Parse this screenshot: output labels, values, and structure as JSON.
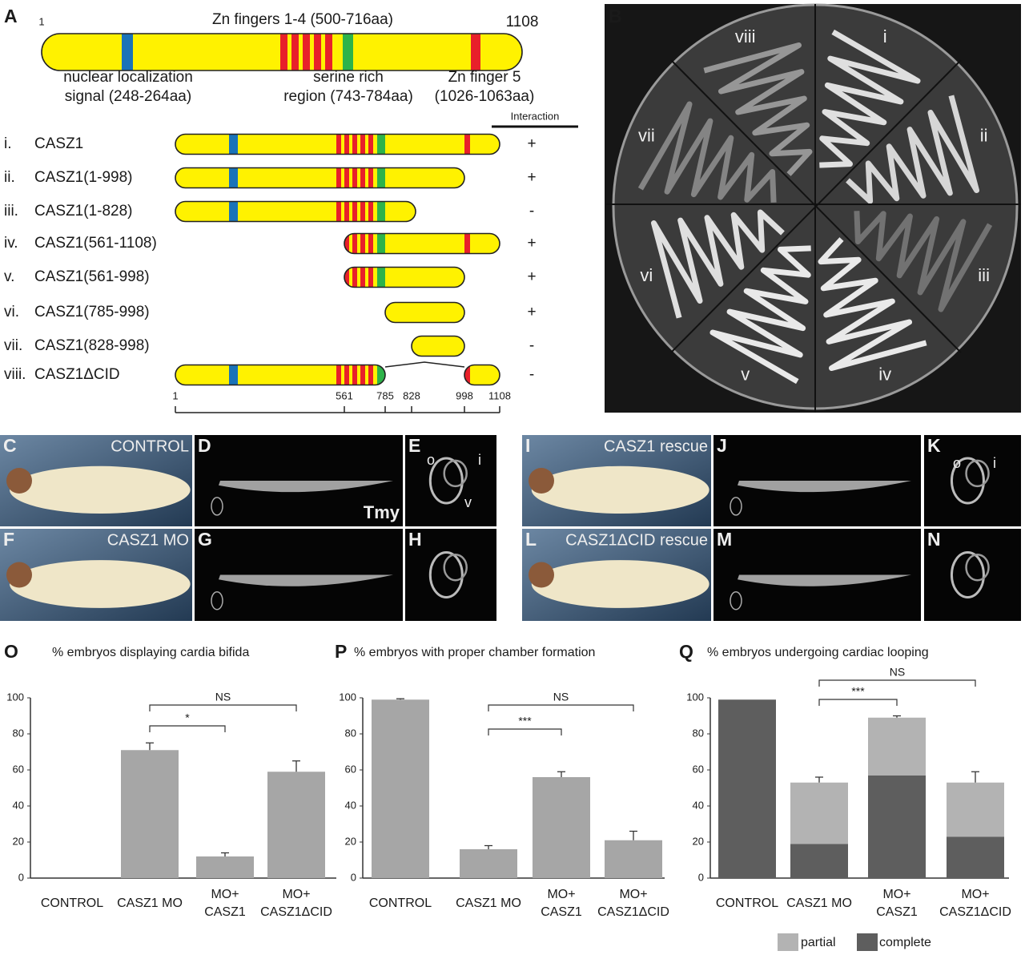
{
  "panel_a": {
    "label": "A",
    "start": 1,
    "end": 1108,
    "zn_fingers": "Zn fingers 1-4 (500-716aa)",
    "features": [
      [
        "nuclear localization",
        "signal (248-264aa)"
      ],
      [
        "serine rich",
        "region (743-784aa)"
      ],
      [
        "Zn finger 5",
        "(1026-1063aa)"
      ]
    ],
    "interaction_header": "Interaction",
    "constructs": [
      {
        "numeral": "i.",
        "name": "CASZ1",
        "interaction": "+"
      },
      {
        "numeral": "ii.",
        "name": "CASZ1(1-998)",
        "interaction": "+"
      },
      {
        "numeral": "iii.",
        "name": "CASZ1(1-828)",
        "interaction": "-"
      },
      {
        "numeral": "iv.",
        "name": "CASZ1(561-1108)",
        "interaction": "+"
      },
      {
        "numeral": "v.",
        "name": "CASZ1(561-998)",
        "interaction": "+"
      },
      {
        "numeral": "vi.",
        "name": "CASZ1(785-998)",
        "interaction": "+"
      },
      {
        "numeral": "vii.",
        "name": "CASZ1(828-998)",
        "interaction": "-"
      },
      {
        "numeral": "viii.",
        "name": "CASZ1ΔCID",
        "interaction": "-"
      }
    ],
    "scale_ticks": [
      1,
      561,
      785,
      828,
      998,
      1108
    ]
  },
  "panel_b": {
    "label": "B",
    "sectors": [
      "i",
      "ii",
      "iii",
      "iv",
      "v",
      "vi",
      "vii",
      "viii"
    ]
  },
  "images": [
    {
      "label": "C",
      "caption": "CONTROL"
    },
    {
      "label": "D",
      "caption": "Tmy"
    },
    {
      "label": "E",
      "marks": [
        "o",
        "i",
        "v"
      ]
    },
    {
      "label": "F",
      "caption": "CASZ1 MO"
    },
    {
      "label": "G"
    },
    {
      "label": "H"
    },
    {
      "label": "I",
      "caption": "CASZ1 rescue"
    },
    {
      "label": "J"
    },
    {
      "label": "K",
      "marks": [
        "o",
        "i"
      ]
    },
    {
      "label": "L",
      "caption": "CASZ1ΔCID rescue"
    },
    {
      "label": "M"
    },
    {
      "label": "N"
    }
  ],
  "chart_data": [
    {
      "panel": "O",
      "type": "bar",
      "title": "% embryos displaying cardia bifida",
      "categories": [
        "CONTROL",
        "CASZ1 MO",
        "MO+\nCASZ1",
        "MO+\nCASZ1ΔCID"
      ],
      "values": [
        0,
        71,
        12,
        59
      ],
      "errors": [
        null,
        4,
        2,
        6
      ],
      "color": "#a6a6a6",
      "ylim": [
        0,
        100
      ],
      "yticks": [
        0,
        20,
        40,
        60,
        80,
        100
      ],
      "annotations": [
        "NS",
        "*"
      ]
    },
    {
      "panel": "P",
      "type": "bar",
      "title": "% embryos with proper chamber formation",
      "categories": [
        "CONTROL",
        "CASZ1 MO",
        "MO+\nCASZ1",
        "MO+\nCASZ1ΔCID"
      ],
      "values": [
        99,
        16,
        56,
        21
      ],
      "errors": [
        0.5,
        2,
        3,
        5
      ],
      "color": "#a6a6a6",
      "ylim": [
        0,
        100
      ],
      "yticks": [
        0,
        20,
        40,
        60,
        80,
        100
      ],
      "annotations": [
        "NS",
        "***"
      ]
    },
    {
      "panel": "Q",
      "type": "stacked_bar",
      "title": "% embryos undergoing cardiac looping",
      "categories": [
        "CONTROL",
        "CASZ1 MO",
        "MO+\nCASZ1",
        "MO+\nCASZ1ΔCID"
      ],
      "series": [
        {
          "name": "complete",
          "color": "#5e5e5e",
          "values": [
            99,
            19,
            57,
            23
          ]
        },
        {
          "name": "partial",
          "color": "#b3b3b3",
          "values": [
            0,
            34,
            32,
            30
          ],
          "errors": [
            null,
            3,
            1,
            6
          ]
        }
      ],
      "ylim": [
        0,
        100
      ],
      "yticks": [
        0,
        20,
        40,
        60,
        80,
        100
      ],
      "annotations": [
        "NS",
        "***"
      ]
    }
  ]
}
